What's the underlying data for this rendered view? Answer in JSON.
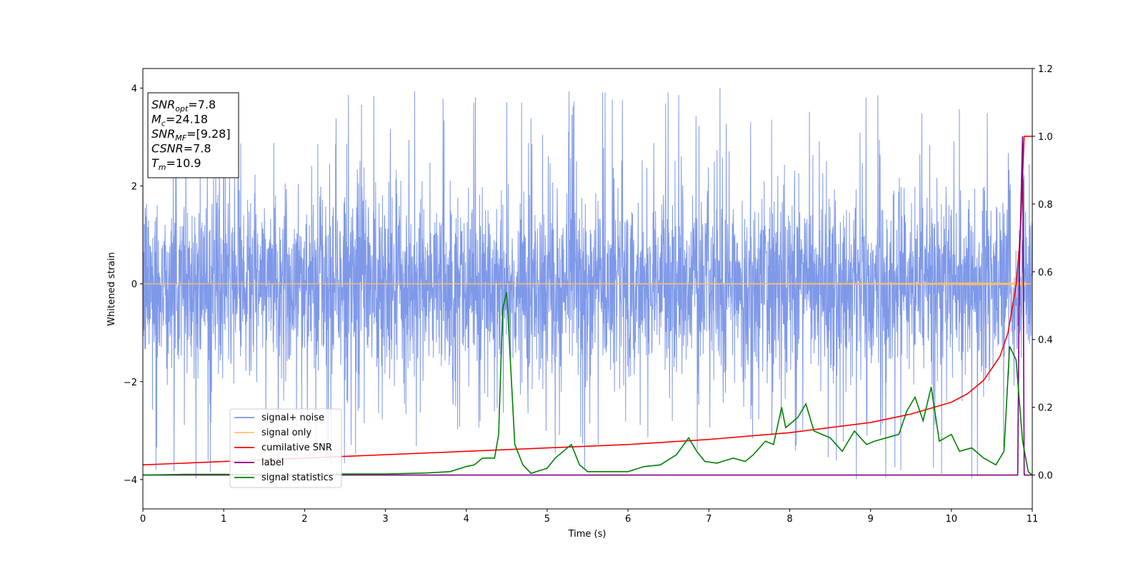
{
  "chart_data": {
    "type": "line",
    "xlabel": "Time (s)",
    "ylabel": "Whitened strain",
    "xlim": [
      0,
      11
    ],
    "ylim_left": [
      -4.6,
      4.4
    ],
    "ylim_right": [
      -0.1,
      1.2
    ],
    "x_ticks": [
      "0",
      "1",
      "2",
      "3",
      "4",
      "5",
      "6",
      "7",
      "8",
      "9",
      "10",
      "11"
    ],
    "y_left_ticks": [
      "−4",
      "−2",
      "0",
      "2",
      "4"
    ],
    "y_left_tick_values": [
      -4,
      -2,
      0,
      2,
      4
    ],
    "y_right_ticks": [
      "0.0",
      "0.2",
      "0.4",
      "0.6",
      "0.8",
      "1.0",
      "1.2"
    ],
    "y_right_tick_values": [
      0.0,
      0.2,
      0.4,
      0.6,
      0.8,
      1.0,
      1.2
    ],
    "annotation": {
      "lines": [
        {
          "sym": "SNR",
          "sub": "opt",
          "rest": "=7.8"
        },
        {
          "sym": "M",
          "sub": "c",
          "rest": "=24.18"
        },
        {
          "sym": "SNR",
          "sub": "MF",
          "rest": "=[9.28]"
        },
        {
          "sym": "CSNR",
          "sub": "",
          "rest": "=7.8"
        },
        {
          "sym": "T",
          "sub": "m",
          "rest": "=10.9"
        }
      ]
    },
    "legend": {
      "position": "lower-left",
      "entries": [
        "signal+ noise",
        "signal only",
        "cumilative SNR",
        "label",
        "signal statistics"
      ]
    },
    "series": [
      {
        "name": "signal+ noise",
        "axis": "left",
        "color": "#7894e8",
        "kind": "noise",
        "std": 0.95,
        "spikes_max": 4.0
      },
      {
        "name": "signal only",
        "axis": "left",
        "color": "#ffc266",
        "kind": "chirp",
        "merger_time": 10.9
      },
      {
        "name": "cumilative SNR",
        "axis": "right",
        "color": "#ff0000",
        "x": [
          0,
          1,
          2,
          3,
          4,
          5,
          6,
          7,
          8,
          8.5,
          9,
          9.5,
          10,
          10.2,
          10.4,
          10.6,
          10.7,
          10.8,
          10.85,
          10.9,
          10.91,
          11
        ],
        "values": [
          0.03,
          0.04,
          0.05,
          0.06,
          0.07,
          0.08,
          0.09,
          0.105,
          0.125,
          0.14,
          0.155,
          0.18,
          0.215,
          0.24,
          0.28,
          0.35,
          0.42,
          0.56,
          0.7,
          1.0,
          1.0,
          1.0
        ]
      },
      {
        "name": "label",
        "axis": "right",
        "color": "#800080",
        "x": [
          0,
          10.82,
          10.84,
          10.88,
          10.9,
          11
        ],
        "values": [
          0,
          0,
          0.6,
          1.0,
          0,
          0
        ]
      },
      {
        "name": "signal statistics",
        "axis": "right",
        "color": "#008000",
        "x": [
          0,
          0.5,
          1,
          1.5,
          2,
          2.5,
          3,
          3.5,
          3.8,
          4,
          4.1,
          4.2,
          4.35,
          4.4,
          4.45,
          4.5,
          4.6,
          4.7,
          4.8,
          5,
          5.1,
          5.2,
          5.3,
          5.4,
          5.5,
          6,
          6.2,
          6.4,
          6.6,
          6.75,
          6.85,
          6.95,
          7.1,
          7.3,
          7.45,
          7.55,
          7.7,
          7.8,
          7.9,
          7.95,
          8.1,
          8.2,
          8.3,
          8.5,
          8.65,
          8.8,
          8.95,
          9.05,
          9.2,
          9.35,
          9.45,
          9.55,
          9.65,
          9.75,
          9.85,
          10,
          10.1,
          10.25,
          10.4,
          10.55,
          10.65,
          10.72,
          10.8,
          10.88,
          10.95,
          11
        ],
        "values": [
          0,
          0.002,
          0.002,
          0.001,
          0.002,
          0.003,
          0.003,
          0.006,
          0.01,
          0.025,
          0.03,
          0.05,
          0.05,
          0.12,
          0.49,
          0.54,
          0.09,
          0.03,
          0.005,
          0.02,
          0.05,
          0.07,
          0.09,
          0.03,
          0.01,
          0.01,
          0.025,
          0.03,
          0.06,
          0.11,
          0.07,
          0.04,
          0.035,
          0.05,
          0.04,
          0.06,
          0.1,
          0.09,
          0.2,
          0.14,
          0.17,
          0.21,
          0.13,
          0.11,
          0.07,
          0.13,
          0.09,
          0.1,
          0.11,
          0.12,
          0.19,
          0.23,
          0.16,
          0.26,
          0.1,
          0.12,
          0.07,
          0.08,
          0.05,
          0.03,
          0.07,
          0.38,
          0.34,
          0.1,
          0.01,
          0.0
        ]
      }
    ]
  }
}
